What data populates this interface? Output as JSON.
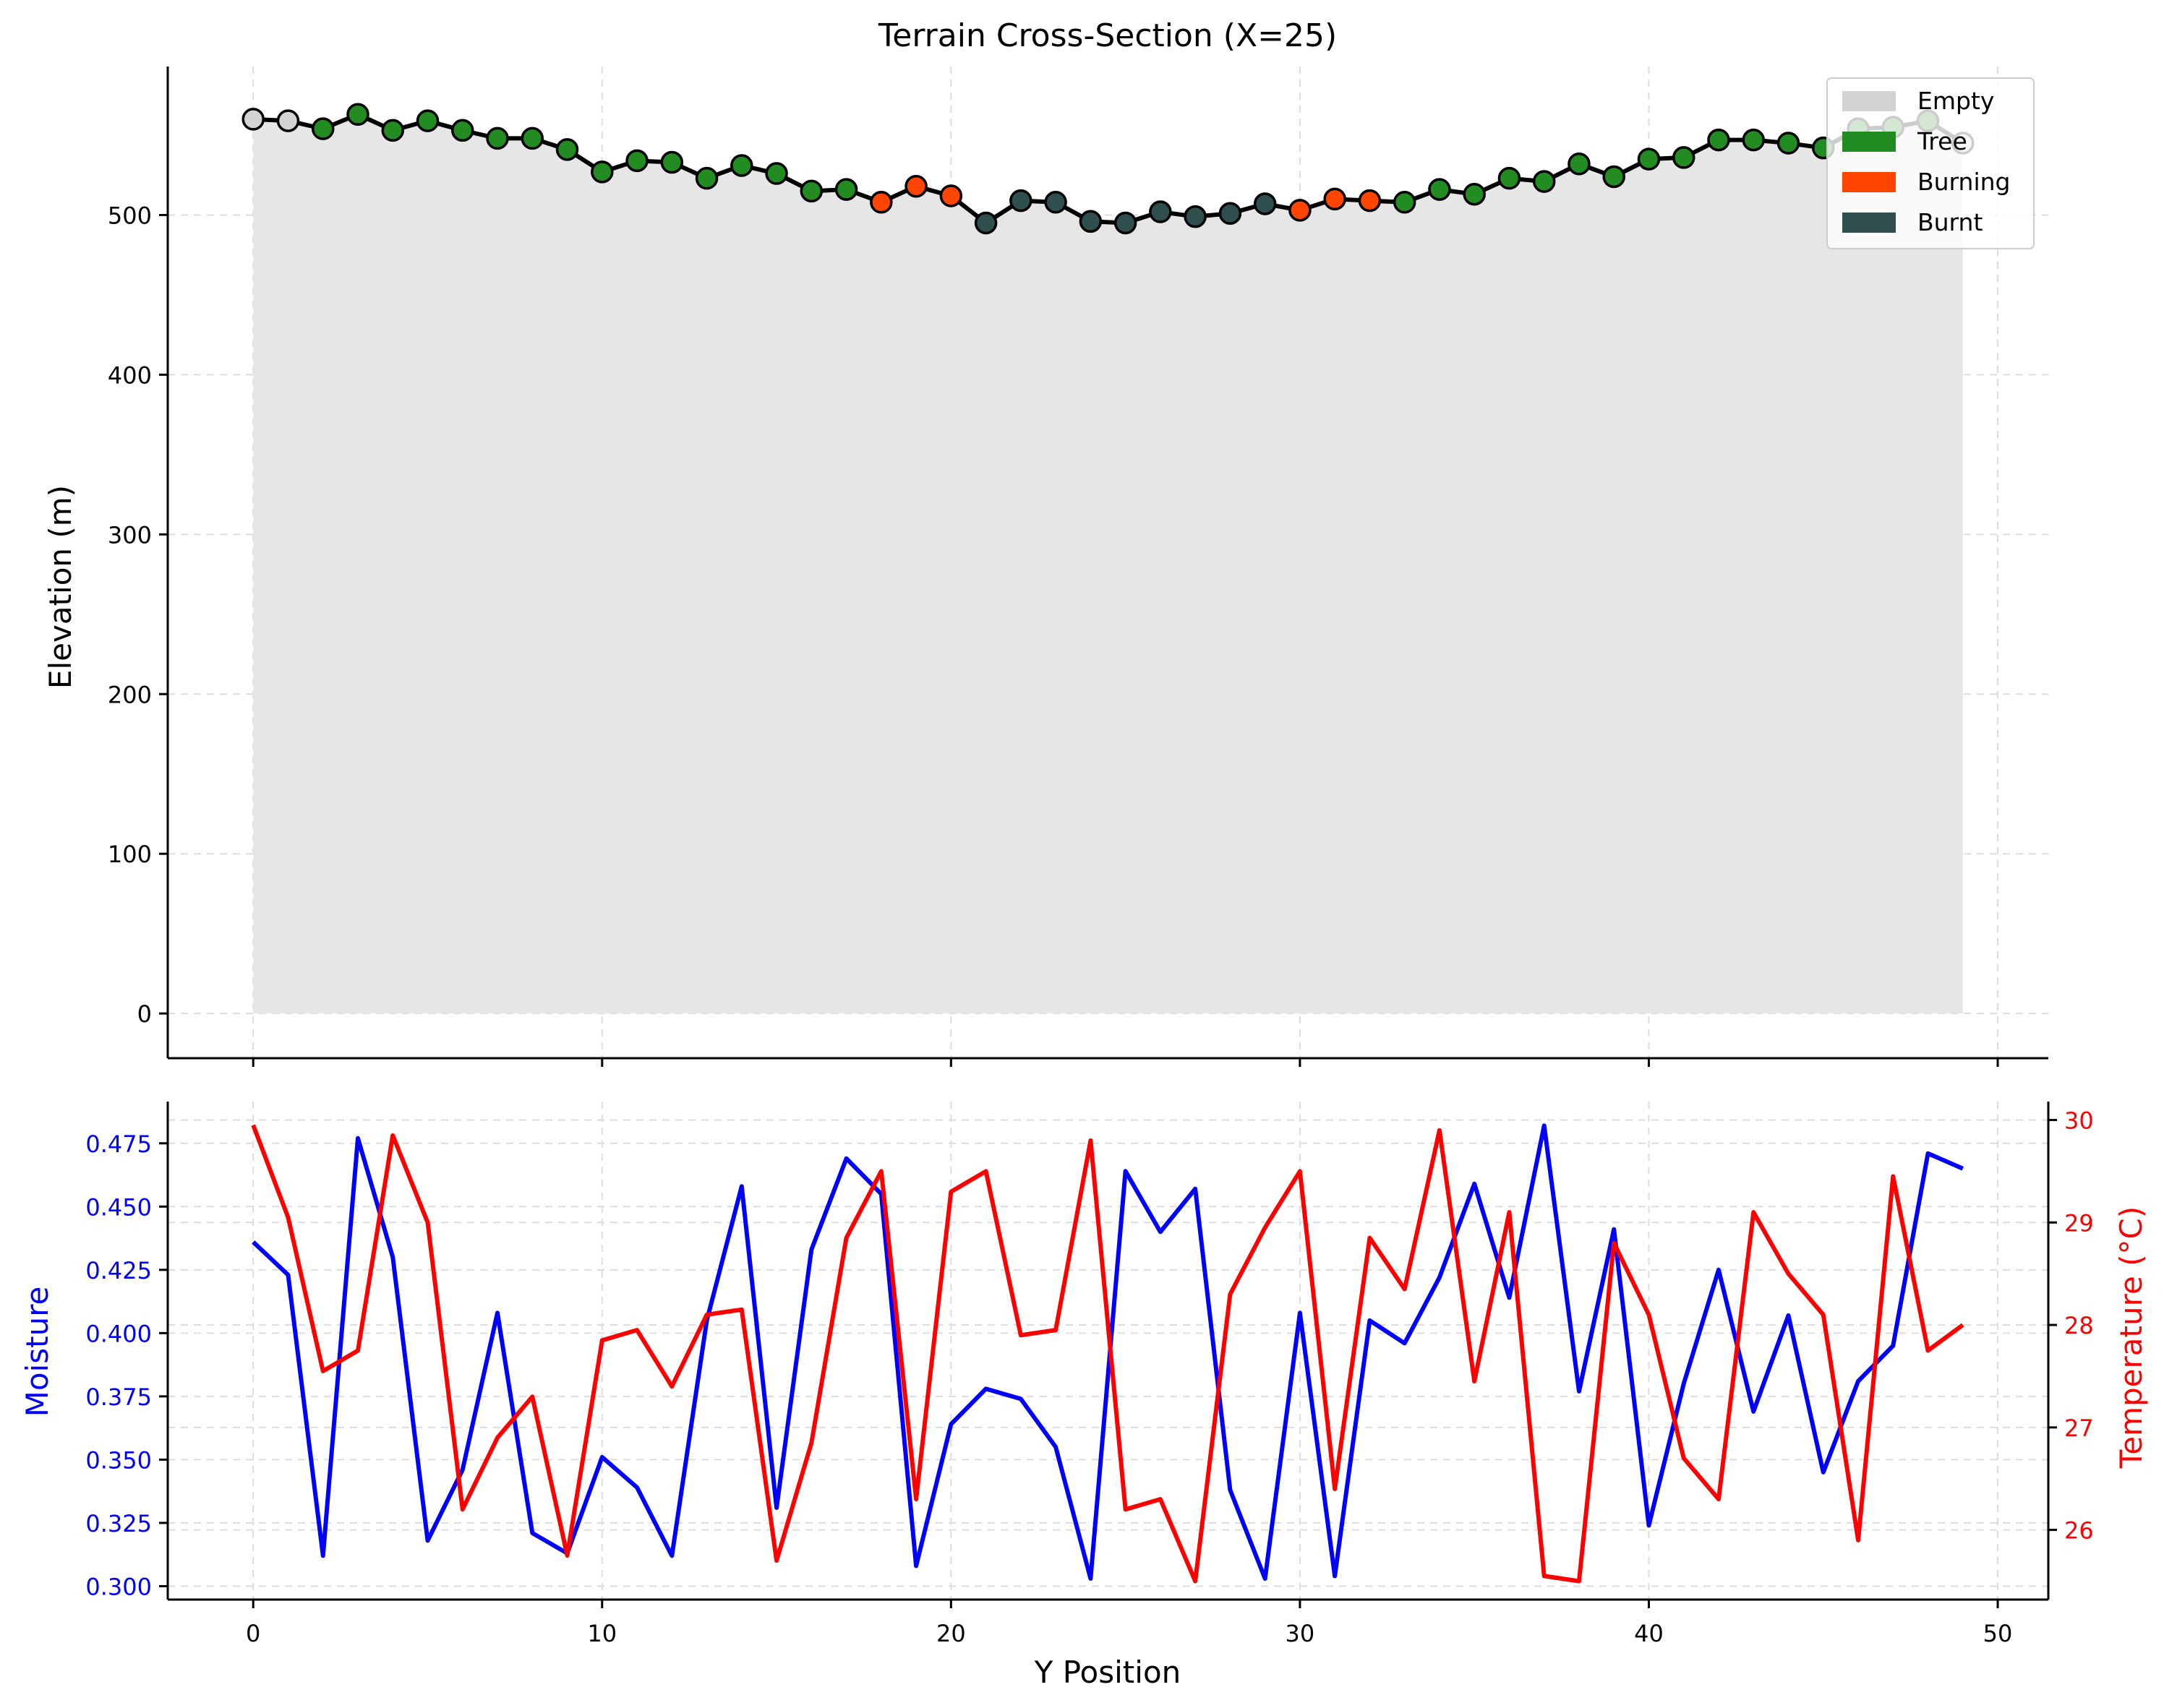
{
  "chart_data": [
    {
      "type": "line",
      "title": "Terrain Cross-Section (X=25)",
      "xlabel": "",
      "ylabel": "Elevation (m)",
      "xlim": [
        -2.45,
        51.45
      ],
      "ylim": [
        -28,
        593
      ],
      "xticks": [
        0,
        10,
        20,
        30,
        40,
        50
      ],
      "xtick_labels": [],
      "yticks": [
        0,
        100,
        200,
        300,
        400,
        500
      ],
      "ytick_labels": [
        "0",
        "100",
        "200",
        "300",
        "400",
        "500"
      ],
      "grid": true,
      "legend": {
        "position": "top-right",
        "entries": [
          {
            "label": "Empty",
            "color": "#d3d3d3"
          },
          {
            "label": "Tree",
            "color": "#228b22"
          },
          {
            "label": "Burning",
            "color": "#ff4500"
          },
          {
            "label": "Burnt",
            "color": "#2f4f4f"
          }
        ]
      },
      "fill_color": "#e6e6e6",
      "line_color": "#000000",
      "state_colors": {
        "Empty": "#d3d3d3",
        "Tree": "#228b22",
        "Burning": "#ff4500",
        "Burnt": "#2f4f4f"
      },
      "x": [
        0,
        1,
        2,
        3,
        4,
        5,
        6,
        7,
        8,
        9,
        10,
        11,
        12,
        13,
        14,
        15,
        16,
        17,
        18,
        19,
        20,
        21,
        22,
        23,
        24,
        25,
        26,
        27,
        28,
        29,
        30,
        31,
        32,
        33,
        34,
        35,
        36,
        37,
        38,
        39,
        40,
        41,
        42,
        43,
        44,
        45,
        46,
        47,
        48,
        49
      ],
      "elevation": [
        560,
        559,
        554,
        563,
        553,
        559,
        553,
        548,
        548,
        541,
        527,
        534,
        533,
        523,
        531,
        526,
        515,
        516,
        508,
        518,
        512,
        495,
        509,
        508,
        496,
        495,
        502,
        499,
        501,
        507,
        503,
        510,
        509,
        508,
        516,
        513,
        523,
        521,
        532,
        524,
        535,
        536,
        547,
        547,
        545,
        542,
        554,
        555,
        559,
        545
      ],
      "state": [
        "Empty",
        "Empty",
        "Tree",
        "Tree",
        "Tree",
        "Tree",
        "Tree",
        "Tree",
        "Tree",
        "Tree",
        "Tree",
        "Tree",
        "Tree",
        "Tree",
        "Tree",
        "Tree",
        "Tree",
        "Tree",
        "Burning",
        "Burning",
        "Burning",
        "Burnt",
        "Burnt",
        "Burnt",
        "Burnt",
        "Burnt",
        "Burnt",
        "Burnt",
        "Burnt",
        "Burnt",
        "Burning",
        "Burning",
        "Burning",
        "Tree",
        "Tree",
        "Tree",
        "Tree",
        "Tree",
        "Tree",
        "Tree",
        "Tree",
        "Tree",
        "Tree",
        "Tree",
        "Tree",
        "Tree",
        "Tree",
        "Tree",
        "Tree",
        "Empty"
      ]
    },
    {
      "type": "line",
      "title": "",
      "xlabel": "Y Position",
      "ylabel": "Moisture",
      "y2label": "Temperature (°C)",
      "xlim": [
        -2.45,
        51.45
      ],
      "ylim": [
        0.2947,
        0.4915
      ],
      "y2lim": [
        25.32,
        30.18
      ],
      "xticks": [
        0,
        10,
        20,
        30,
        40,
        50
      ],
      "xtick_labels": [
        "0",
        "10",
        "20",
        "30",
        "40",
        "50"
      ],
      "yticks": [
        0.3,
        0.325,
        0.35,
        0.375,
        0.4,
        0.425,
        0.45,
        0.475
      ],
      "ytick_labels": [
        "0.300",
        "0.325",
        "0.350",
        "0.375",
        "0.400",
        "0.425",
        "0.450",
        "0.475"
      ],
      "y2ticks": [
        26,
        27,
        28,
        29,
        30
      ],
      "y2tick_labels": [
        "26",
        "27",
        "28",
        "29",
        "30"
      ],
      "grid": true,
      "series": [
        {
          "name": "Moisture",
          "axis": "left",
          "color": "#0000ff",
          "x": [
            0,
            1,
            2,
            3,
            4,
            5,
            6,
            7,
            8,
            9,
            10,
            11,
            12,
            13,
            14,
            15,
            16,
            17,
            18,
            19,
            20,
            21,
            22,
            23,
            24,
            25,
            26,
            27,
            28,
            29,
            30,
            31,
            32,
            33,
            34,
            35,
            36,
            37,
            38,
            39,
            40,
            41,
            42,
            43,
            44,
            45,
            46,
            47,
            48,
            49
          ],
          "values": [
            0.436,
            0.423,
            0.312,
            0.477,
            0.43,
            0.318,
            0.346,
            0.408,
            0.321,
            0.313,
            0.351,
            0.339,
            0.312,
            0.405,
            0.458,
            0.331,
            0.433,
            0.469,
            0.455,
            0.308,
            0.364,
            0.378,
            0.374,
            0.355,
            0.303,
            0.464,
            0.44,
            0.457,
            0.338,
            0.303,
            0.408,
            0.304,
            0.405,
            0.396,
            0.422,
            0.459,
            0.414,
            0.482,
            0.377,
            0.441,
            0.324,
            0.38,
            0.425,
            0.369,
            0.407,
            0.345,
            0.381,
            0.395,
            0.471,
            0.465
          ]
        },
        {
          "name": "Temperature",
          "axis": "right",
          "color": "#ff0000",
          "x": [
            0,
            1,
            2,
            3,
            4,
            5,
            6,
            7,
            8,
            9,
            10,
            11,
            12,
            13,
            14,
            15,
            16,
            17,
            18,
            19,
            20,
            21,
            22,
            23,
            24,
            25,
            26,
            27,
            28,
            29,
            30,
            31,
            32,
            33,
            34,
            35,
            36,
            37,
            38,
            39,
            40,
            41,
            42,
            43,
            44,
            45,
            46,
            47,
            48,
            49
          ],
          "values": [
            29.95,
            29.05,
            27.55,
            27.75,
            29.85,
            29.0,
            26.2,
            26.9,
            27.3,
            25.75,
            27.85,
            27.95,
            27.4,
            28.1,
            28.15,
            25.7,
            26.85,
            28.85,
            29.5,
            26.3,
            29.3,
            29.5,
            27.9,
            27.95,
            29.8,
            26.2,
            26.3,
            25.5,
            28.3,
            28.95,
            29.5,
            26.4,
            28.85,
            28.35,
            29.9,
            27.45,
            29.1,
            25.55,
            25.5,
            28.8,
            28.1,
            26.7,
            26.3,
            29.1,
            28.5,
            28.1,
            25.9,
            29.45,
            27.75,
            28.0
          ]
        }
      ]
    }
  ]
}
